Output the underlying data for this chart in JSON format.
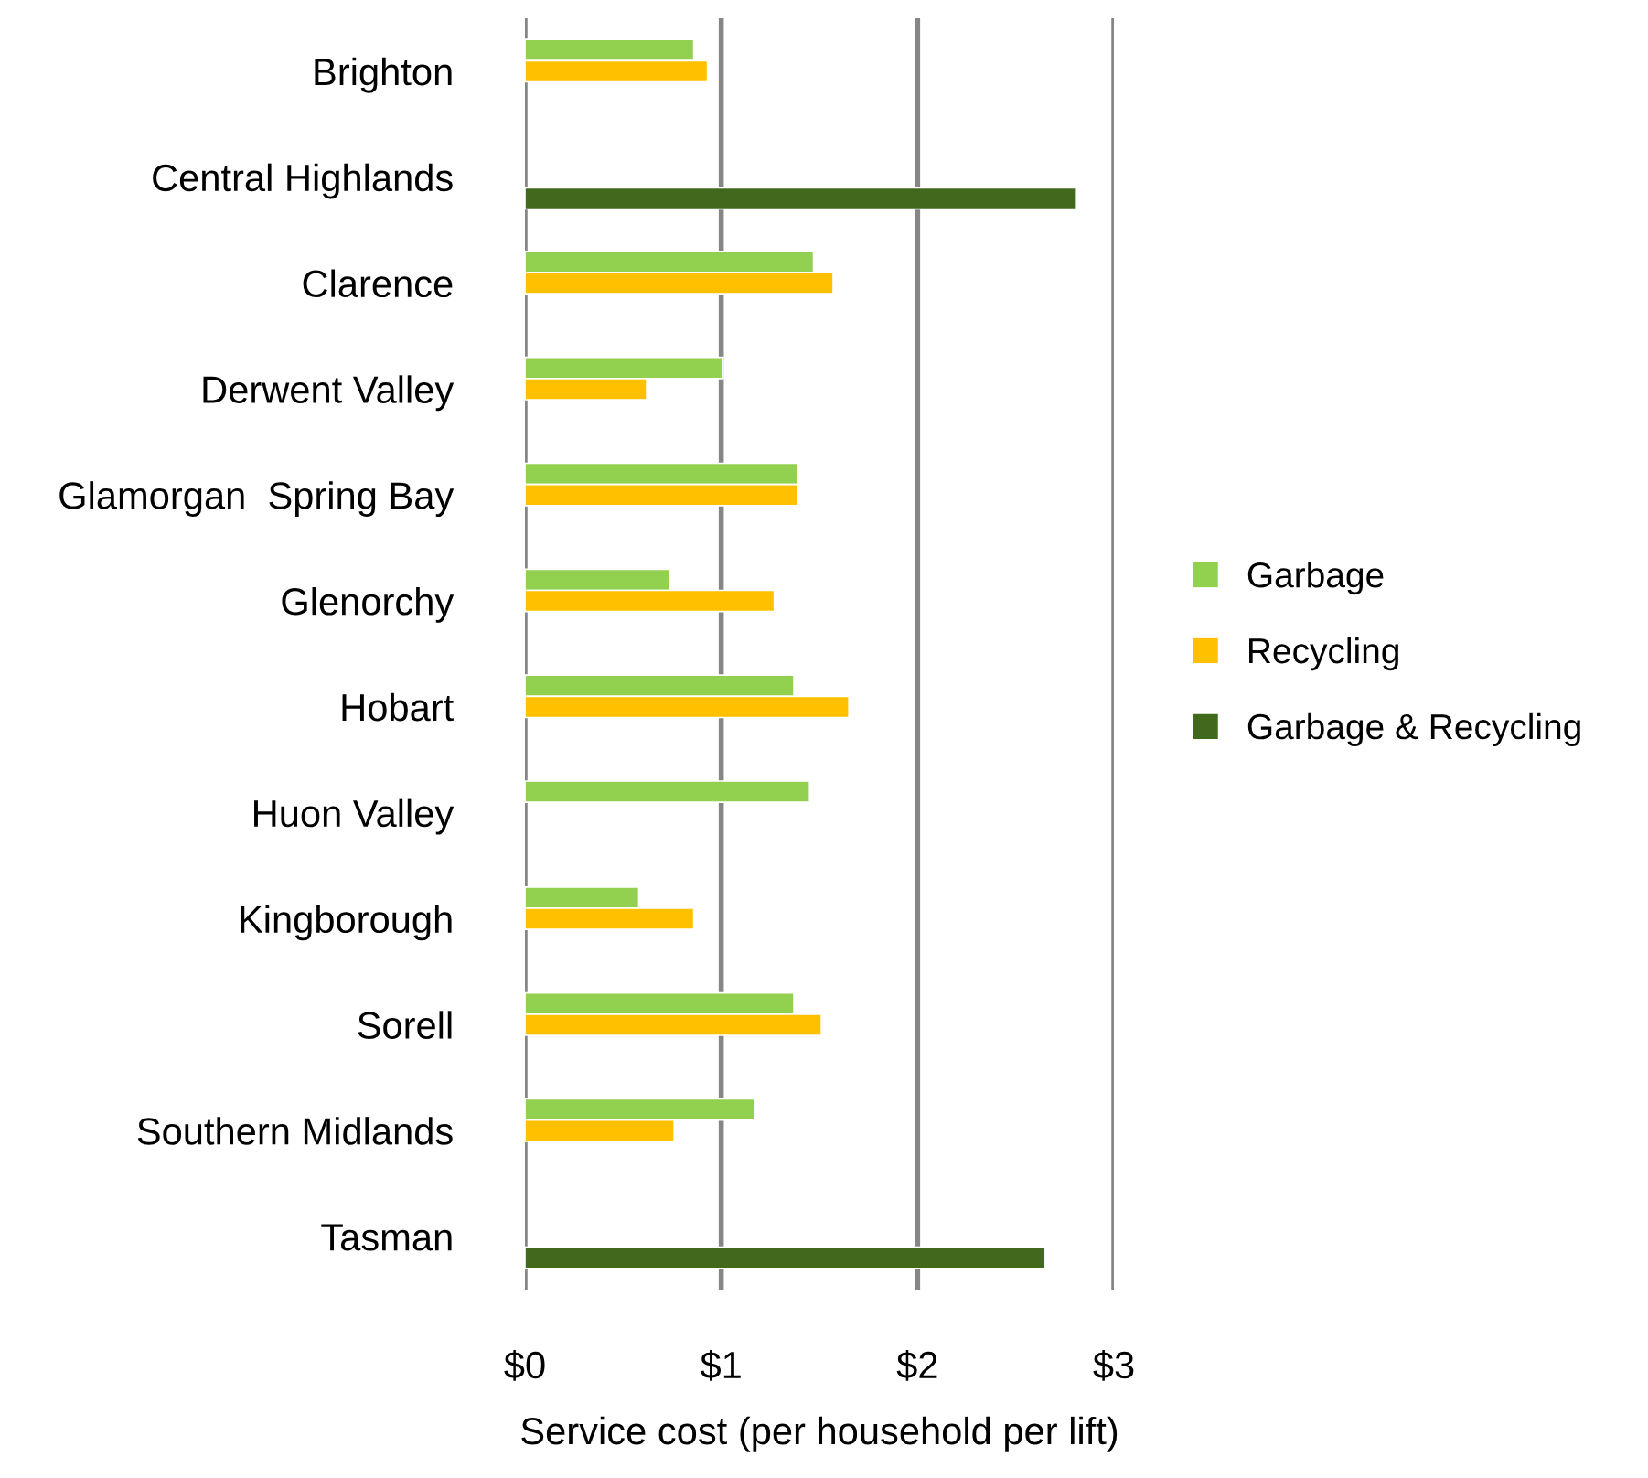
{
  "chart_data": {
    "type": "bar",
    "orientation": "horizontal",
    "categories": [
      "Brighton",
      "Central Highlands",
      "Clarence",
      "Derwent Valley",
      "Glamorgan  Spring Bay",
      "Glenorchy",
      "Hobart",
      "Huon Valley",
      "Kingborough",
      "Sorell",
      "Southern Midlands",
      "Tasman"
    ],
    "series": [
      {
        "name": "Garbage",
        "color": "#92d050",
        "values": [
          0.86,
          null,
          1.47,
          1.01,
          1.39,
          0.74,
          1.37,
          1.45,
          0.58,
          1.37,
          1.17,
          null
        ]
      },
      {
        "name": "Recycling",
        "color": "#ffc000",
        "values": [
          0.93,
          null,
          1.57,
          0.62,
          1.39,
          1.27,
          1.65,
          null,
          0.86,
          1.51,
          0.76,
          null
        ]
      },
      {
        "name": "Garbage & Recycling",
        "color": "#41691c",
        "values": [
          null,
          2.81,
          null,
          null,
          null,
          null,
          null,
          null,
          null,
          null,
          null,
          2.65
        ]
      }
    ],
    "xlabel": "Service cost (per household per lift)",
    "xlim": [
      0,
      3
    ],
    "xticks": [
      {
        "value": 0,
        "label": "$0"
      },
      {
        "value": 1,
        "label": "$1"
      },
      {
        "value": 2,
        "label": "$2"
      },
      {
        "value": 3,
        "label": "$3"
      }
    ],
    "grid": "x",
    "legend": "right"
  }
}
